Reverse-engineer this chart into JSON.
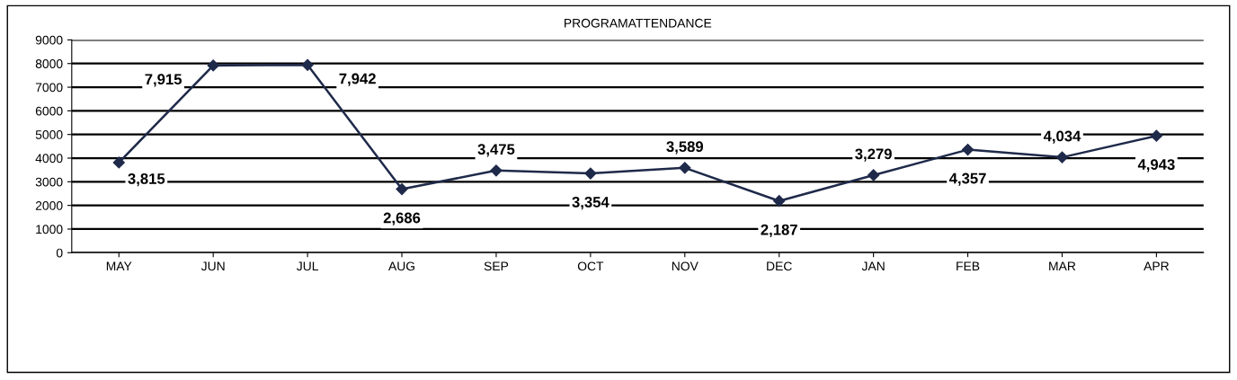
{
  "chart_data": {
    "type": "line",
    "title": "PROGRAMATTENDANCE",
    "categories": [
      "MAY",
      "JUN",
      "JUL",
      "AUG",
      "SEP",
      "OCT",
      "NOV",
      "DEC",
      "JAN",
      "FEB",
      "MAR",
      "APR"
    ],
    "series": [
      {
        "color": "#1f2a4a",
        "values": [
          3815,
          7915,
          7942,
          2686,
          3475,
          3354,
          3589,
          2187,
          3279,
          4357,
          4034,
          4943
        ],
        "value_labels": [
          "3,815",
          "7,915",
          "7,942",
          "2,686",
          "3,475",
          "3,354",
          "3,589",
          "2,187",
          "3,279",
          "4,357",
          "4,034",
          "4,943"
        ]
      }
    ],
    "ylim": [
      0,
      9000
    ],
    "yticks": [
      0,
      1000,
      2000,
      3000,
      4000,
      5000,
      6000,
      7000,
      8000,
      9000
    ],
    "grid": "y",
    "marker": "diamond",
    "line_style": "solid"
  }
}
